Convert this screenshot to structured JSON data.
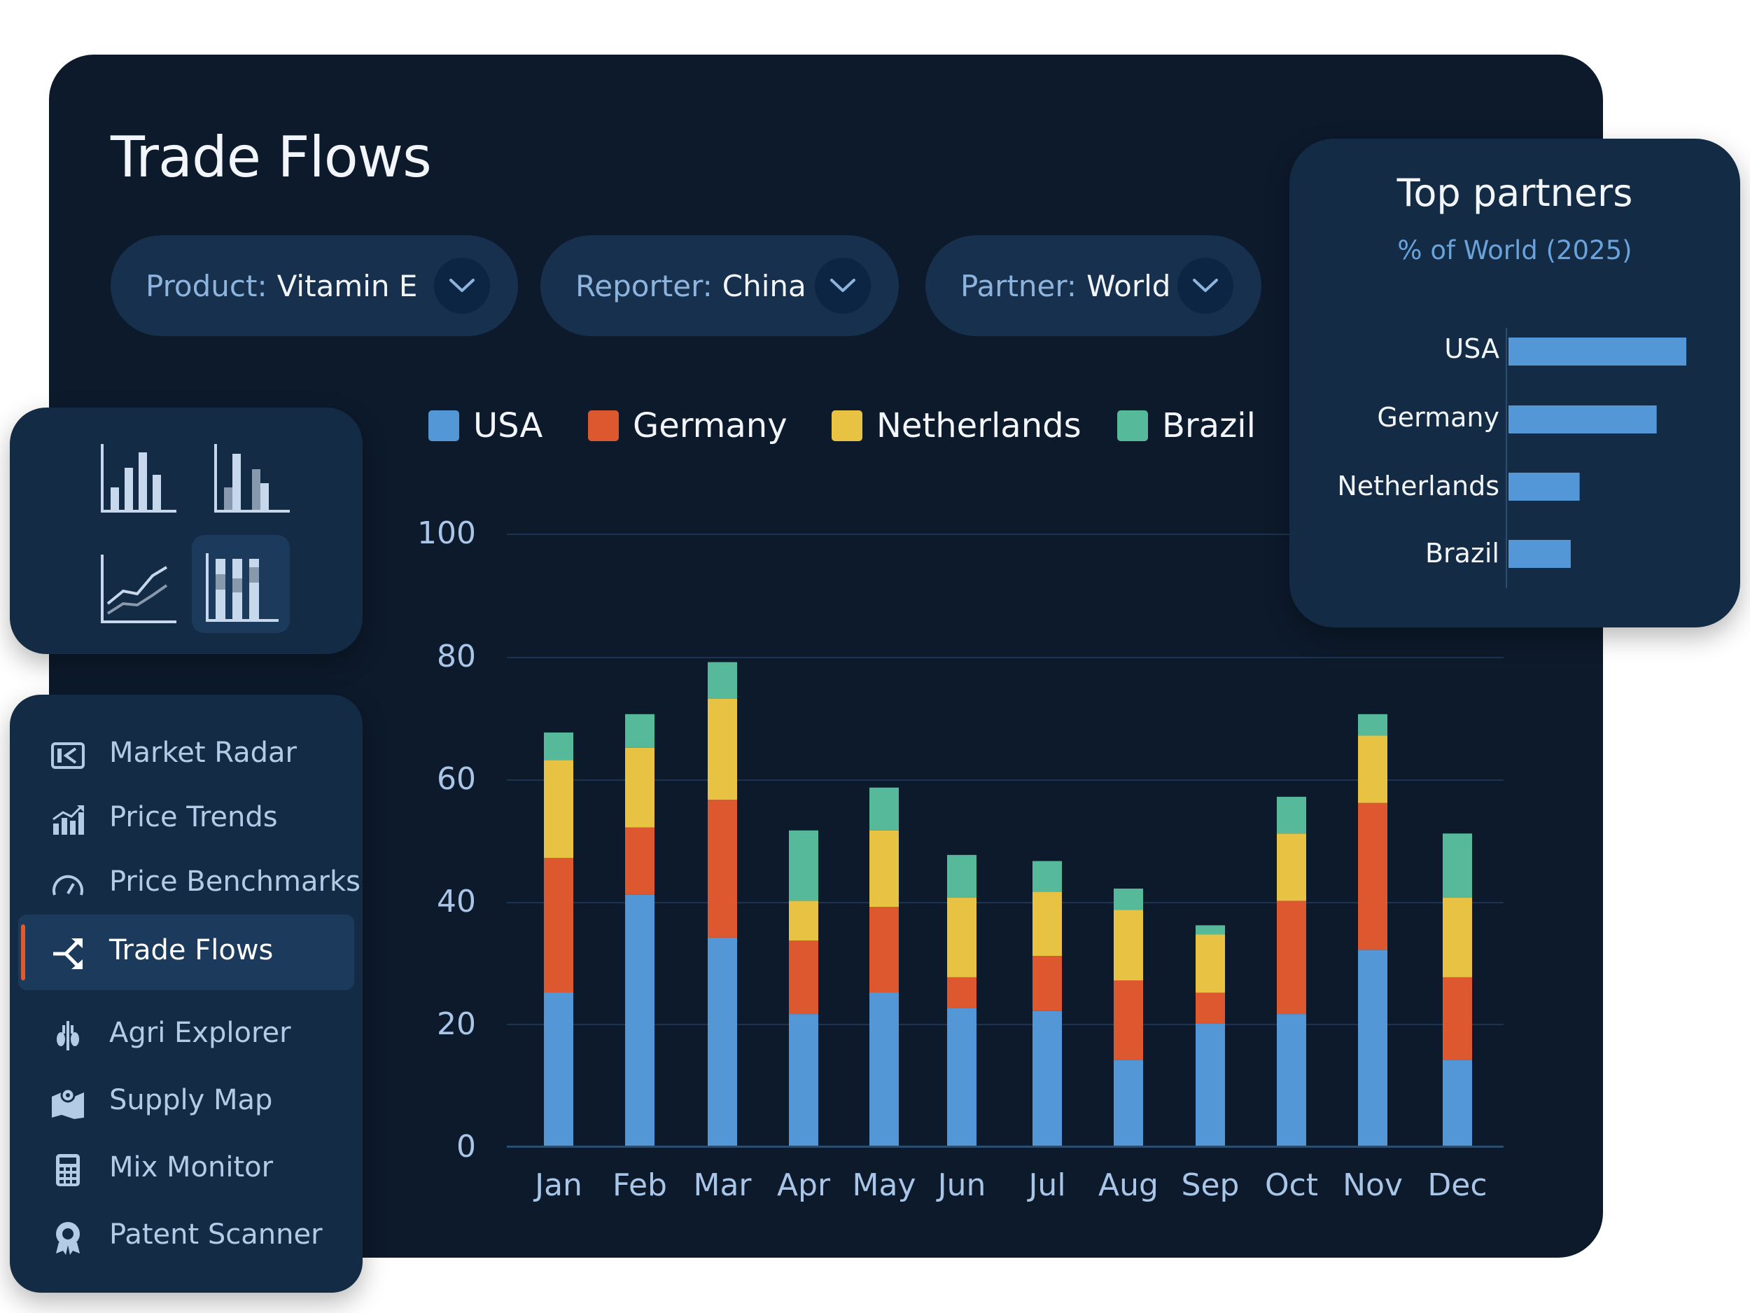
{
  "page": {
    "title": "Trade Flows"
  },
  "filters": [
    {
      "label": "Product:",
      "value": "Vitamin E"
    },
    {
      "label": "Reporter:",
      "value": "China"
    },
    {
      "label": "Partner:",
      "value": "World"
    }
  ],
  "colors": {
    "usa": "#5397d6",
    "germany": "#dd582e",
    "netherlands": "#e8c343",
    "brazil": "#55b99a",
    "background": "#0d1a2b",
    "panel": "#132b45"
  },
  "chart_data": {
    "type": "bar",
    "stacked": true,
    "categories": [
      "Jan",
      "Feb",
      "Mar",
      "Apr",
      "May",
      "Jun",
      "Jul",
      "Aug",
      "Sep",
      "Oct",
      "Nov",
      "Dec"
    ],
    "series": [
      {
        "name": "USA",
        "values": [
          25,
          41,
          34,
          21.5,
          25,
          22.5,
          22,
          14,
          20,
          21.5,
          32,
          14
        ]
      },
      {
        "name": "Germany",
        "values": [
          22,
          11,
          22.5,
          12,
          14,
          5,
          9,
          13,
          5,
          18.5,
          24,
          13.5
        ]
      },
      {
        "name": "Netherlands",
        "values": [
          16,
          13,
          16.5,
          6.5,
          12.5,
          13,
          10.5,
          11.5,
          9.5,
          11,
          11,
          13
        ]
      },
      {
        "name": "Brazil",
        "values": [
          4.5,
          5.5,
          6,
          11.5,
          7,
          7,
          5,
          3.5,
          1.5,
          6,
          3.5,
          10.5
        ]
      }
    ],
    "yticks": [
      "0",
      "20",
      "40",
      "60",
      "80",
      "100"
    ],
    "ylim": [
      0,
      100
    ],
    "grid": true,
    "legend": "top"
  },
  "chart_types": [
    "bar-chart-icon",
    "grouped-bar-chart-icon",
    "line-chart-icon",
    "stacked-bar-chart-icon"
  ],
  "sidebar": {
    "items": [
      {
        "label": "Market Radar",
        "icon": "market-radar-icon"
      },
      {
        "label": "Price Trends",
        "icon": "price-trends-icon"
      },
      {
        "label": "Price Benchmarks",
        "icon": "gauge-icon"
      },
      {
        "label": "Trade Flows",
        "icon": "trade-flows-icon",
        "active": true
      },
      {
        "label": "Agri Explorer",
        "icon": "wheat-icon"
      },
      {
        "label": "Supply Map",
        "icon": "map-pin-icon"
      },
      {
        "label": "Mix Monitor",
        "icon": "calculator-icon"
      },
      {
        "label": "Patent Scanner",
        "icon": "badge-icon"
      }
    ]
  },
  "top_partners": {
    "title": "Top partners",
    "subtitle": "% of World (2025)",
    "chart_data": {
      "type": "bar",
      "orientation": "horizontal",
      "categories": [
        "USA",
        "Germany",
        "Netherlands",
        "Brazil"
      ],
      "values": [
        30,
        25,
        12,
        10.5
      ]
    }
  }
}
